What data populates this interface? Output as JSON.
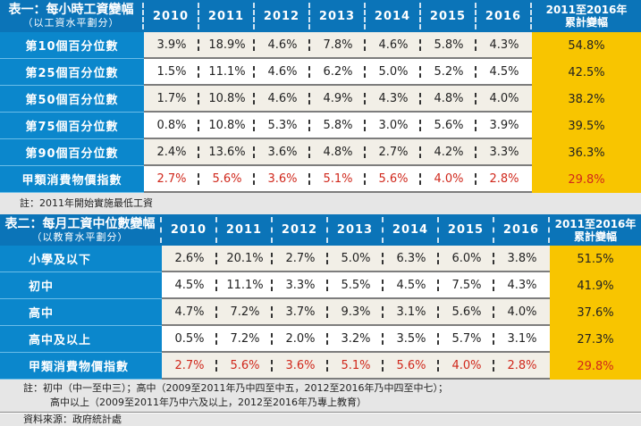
{
  "table1": {
    "title": "表一：每小時工資變幅",
    "subtitle": "（以工資水平劃分）",
    "years": [
      "2010",
      "2011",
      "2012",
      "2013",
      "2014",
      "2015",
      "2016"
    ],
    "cumulative_header": [
      "2011至2016年",
      "累計變幅"
    ],
    "rows": [
      {
        "label": "第10個百分位數",
        "values": [
          "3.9%",
          "18.9%",
          "4.6%",
          "7.8%",
          "4.6%",
          "5.8%",
          "4.3%"
        ],
        "cumulative": "54.8%"
      },
      {
        "label": "第25個百分位數",
        "values": [
          "1.5%",
          "11.1%",
          "4.6%",
          "6.2%",
          "5.0%",
          "5.2%",
          "4.5%"
        ],
        "cumulative": "42.5%"
      },
      {
        "label": "第50個百分位數",
        "values": [
          "1.7%",
          "10.8%",
          "4.6%",
          "4.9%",
          "4.3%",
          "4.8%",
          "4.0%"
        ],
        "cumulative": "38.2%"
      },
      {
        "label": "第75個百分位數",
        "values": [
          "0.8%",
          "10.8%",
          "5.3%",
          "5.8%",
          "3.0%",
          "5.6%",
          "3.9%"
        ],
        "cumulative": "39.5%"
      },
      {
        "label": "第90個百分位數",
        "values": [
          "2.4%",
          "13.6%",
          "3.6%",
          "4.8%",
          "2.7%",
          "4.2%",
          "3.3%"
        ],
        "cumulative": "36.3%"
      },
      {
        "label": "甲類消費物價指數",
        "values": [
          "2.7%",
          "5.6%",
          "3.6%",
          "5.1%",
          "5.6%",
          "4.0%",
          "2.8%"
        ],
        "cumulative": "29.8%"
      }
    ],
    "note": "註：2011年開始實施最低工資"
  },
  "table2": {
    "title": "表二：每月工資中位數變幅",
    "subtitle": "（以教育水平劃分）",
    "years": [
      "2010",
      "2011",
      "2012",
      "2013",
      "2014",
      "2015",
      "2016"
    ],
    "cumulative_header": [
      "2011至2016年",
      "累計變幅"
    ],
    "rows": [
      {
        "label": "小學及以下",
        "values": [
          "2.6%",
          "20.1%",
          "2.7%",
          "5.0%",
          "6.3%",
          "6.0%",
          "3.8%"
        ],
        "cumulative": "51.5%"
      },
      {
        "label": "初中",
        "values": [
          "4.5%",
          "11.1%",
          "3.3%",
          "5.5%",
          "4.5%",
          "7.5%",
          "4.3%"
        ],
        "cumulative": "41.9%"
      },
      {
        "label": "高中",
        "values": [
          "4.7%",
          "7.2%",
          "3.7%",
          "9.3%",
          "3.1%",
          "5.6%",
          "4.0%"
        ],
        "cumulative": "37.6%"
      },
      {
        "label": "高中及以上",
        "values": [
          "0.5%",
          "7.2%",
          "2.0%",
          "3.2%",
          "3.5%",
          "5.7%",
          "3.1%"
        ],
        "cumulative": "27.3%"
      },
      {
        "label": "甲類消費物價指數",
        "values": [
          "2.7%",
          "5.6%",
          "3.6%",
          "5.1%",
          "5.6%",
          "4.0%",
          "2.8%"
        ],
        "cumulative": "29.8%"
      }
    ],
    "note_line1": "註：初中（中一至中三）；高中（2009至2011年乃中四至中五，2012至2016年乃中四至中七）；",
    "note_line2": "高中以上（2009至2011年乃中六及以上，2012至2016年乃專上教育）"
  },
  "source": "資料來源：政府統計處",
  "colors": {
    "header": "#0b74b8",
    "label": "#0b87cc",
    "cumulative": "#f8c500",
    "cpi": "#d0281c"
  }
}
